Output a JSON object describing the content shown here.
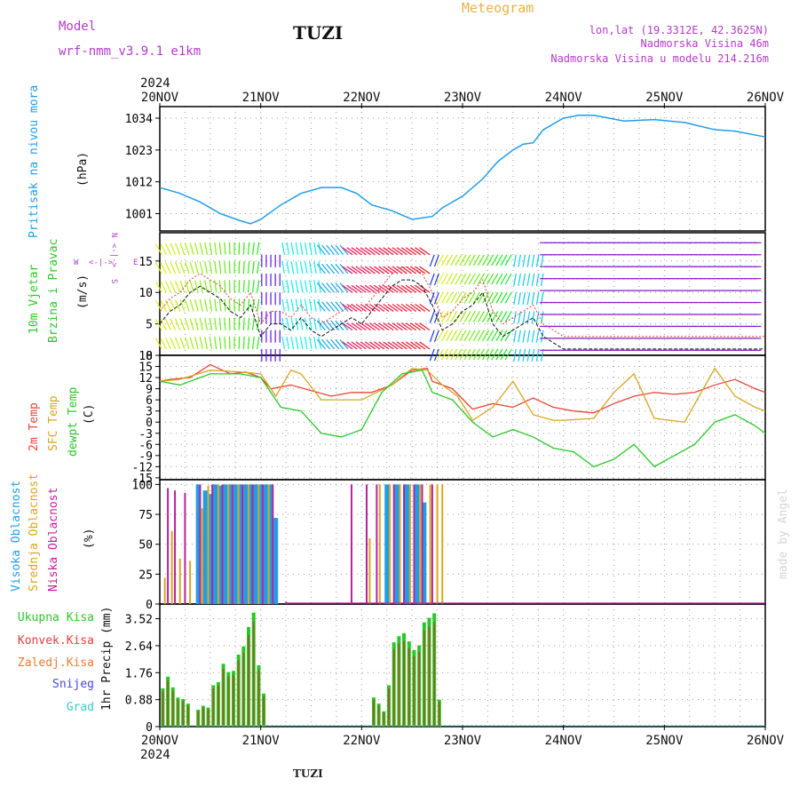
{
  "header": {
    "model_label": "Model",
    "model_name": "wrf-nmm_v3.9.1 e1km",
    "station": "TUZI",
    "meteogram": "Meteogram",
    "lonlat": "lon,lat (19.3312E, 42.3625N)",
    "elevation": "Nadmorska Visina 46m",
    "model_elevation": "Nadmorska Visina u modelu 214.216m",
    "year_top": "2024",
    "year_bottom": "2024",
    "footer_station": "TUZI",
    "watermark": "made by Angel"
  },
  "colors": {
    "pressure": "#1e9ee6",
    "temp2m": "#e8443a",
    "sfc": "#d9a520",
    "dewpt": "#28c828",
    "high_cloud": "#1e9ee6",
    "mid_cloud": "#d9a520",
    "low_cloud": "#b4249c",
    "total": "#28c828",
    "conv": "#e83c3c",
    "frz": "#f07830",
    "snow": "#4646dc",
    "hail": "#3cc8c8",
    "label_purple": "#b23cc8"
  },
  "x_axis": {
    "labels": [
      "20NOV",
      "21NOV",
      "22NOV",
      "23NOV",
      "24NOV",
      "25NOV",
      "26NOV"
    ]
  },
  "panels": {
    "pressure": {
      "label1": "Pritisak na nivou mora",
      "unit": "(hPa)",
      "ticks": [
        "1034",
        "1023",
        "1012",
        "1001"
      ],
      "tick_values": [
        1034,
        1023,
        1012,
        1001
      ],
      "ylim": [
        995,
        1038
      ]
    },
    "wind": {
      "label1": "10m Vjetar",
      "label2": "Brzina i Pravac",
      "unit": "(m/s)",
      "ticks": [
        "15",
        "10",
        "5",
        "0"
      ],
      "tick_values": [
        15,
        10,
        5,
        0
      ],
      "ylim": [
        0,
        19.5
      ],
      "compass": {
        "w": "W",
        "e": "E",
        "n": "N",
        "s": "S",
        "arrow": "<-|->"
      }
    },
    "temp": {
      "label1": "2m Temp",
      "label2": "SFC Temp",
      "label3": "dewpt Temp",
      "unit": "(C)",
      "ticks": [
        "18",
        "15",
        "12",
        "9",
        "6",
        "3",
        "0",
        "-3",
        "-6",
        "-9",
        "-12",
        "-15"
      ],
      "tick_values": [
        18,
        15,
        12,
        9,
        6,
        3,
        0,
        -3,
        -6,
        -9,
        -12,
        -15
      ],
      "ylim": [
        -15.5,
        18
      ]
    },
    "cloud": {
      "label1": "Visoka Oblacnost",
      "label2": "Srednja Oblacnost",
      "label3": "Niska Oblacnost",
      "unit": "(%)",
      "ticks": [
        "100",
        "75",
        "50",
        "25",
        "0"
      ],
      "tick_values": [
        100,
        75,
        50,
        25,
        0
      ],
      "ylim": [
        0,
        104
      ]
    },
    "precip": {
      "legend": [
        "Ukupna Kisa",
        "Konvek.Kisa",
        "Zaledj.Kisa",
        "Snijeg",
        "Grad"
      ],
      "unit": "1hr Precip (mm)",
      "ticks": [
        "3.52",
        "2.64",
        "1.76",
        "0.88",
        "0"
      ],
      "tick_values": [
        3.52,
        2.64,
        1.76,
        0.88,
        0
      ],
      "ylim": [
        0,
        4.0
      ]
    }
  },
  "chart_data": [
    {
      "type": "line",
      "id": "pressure",
      "ylabel": "Pritisak na nivou mora (hPa)",
      "x_days": [
        0,
        0.2,
        0.4,
        0.6,
        0.8,
        0.9,
        1.0,
        1.2,
        1.4,
        1.6,
        1.8,
        1.95,
        2.1,
        2.3,
        2.5,
        2.7,
        2.8,
        3.0,
        3.2,
        3.35,
        3.5,
        3.6,
        3.7,
        3.8,
        4.0,
        4.15,
        4.3,
        4.6,
        4.9,
        5.2,
        5.5,
        5.7,
        6.0
      ],
      "y_hpa": [
        1010,
        1008,
        1005,
        1001,
        998.5,
        997.5,
        999,
        1004,
        1008,
        1010,
        1010,
        1008,
        1004,
        1002,
        999,
        1000,
        1003,
        1007,
        1013,
        1019,
        1023,
        1025,
        1025.5,
        1030,
        1034,
        1035,
        1035,
        1033,
        1033.5,
        1032.5,
        1030,
        1029.5,
        1027.5
      ]
    },
    {
      "type": "line",
      "id": "temperature",
      "series": [
        {
          "name": "2m Temp",
          "x_days": [
            0,
            0.1,
            0.3,
            0.5,
            0.7,
            0.85,
            1.0,
            1.1,
            1.3,
            1.5,
            1.7,
            1.9,
            2.1,
            2.3,
            2.5,
            2.65,
            2.7,
            2.9,
            3.1,
            3.3,
            3.5,
            3.7,
            3.9,
            4.1,
            4.3,
            4.5,
            4.7,
            4.9,
            5.1,
            5.3,
            5.5,
            5.7,
            5.9,
            6.0
          ],
          "y": [
            11,
            11.5,
            12,
            15.5,
            13,
            13.5,
            12,
            9,
            10,
            8.5,
            7,
            8,
            8,
            10,
            14,
            14.5,
            11,
            9,
            3.5,
            5,
            4,
            6.5,
            4,
            3,
            2.5,
            5,
            7,
            8,
            7.5,
            8,
            10,
            11.5,
            9,
            8
          ]
        },
        {
          "name": "SFC Temp",
          "x_days": [
            0,
            0.2,
            0.5,
            0.8,
            1.0,
            1.15,
            1.3,
            1.4,
            1.6,
            1.8,
            2.0,
            2.3,
            2.5,
            2.65,
            2.8,
            2.95,
            3.1,
            3.3,
            3.5,
            3.7,
            3.9,
            4.0,
            4.3,
            4.5,
            4.7,
            4.9,
            5.2,
            5.5,
            5.7,
            5.9,
            6.0
          ],
          "y": [
            11,
            11.5,
            14,
            13.5,
            13,
            7,
            14,
            13,
            6,
            6,
            6,
            10,
            14.5,
            14,
            10,
            7,
            0.5,
            4,
            11,
            2,
            0.5,
            0.5,
            1,
            8,
            13,
            1,
            0,
            14.5,
            7,
            4,
            3
          ]
        },
        {
          "name": "dewpt Temp",
          "x_days": [
            0,
            0.2,
            0.5,
            0.8,
            1.0,
            1.1,
            1.2,
            1.4,
            1.5,
            1.6,
            1.8,
            2.0,
            2.2,
            2.4,
            2.6,
            2.7,
            2.9,
            3.1,
            3.3,
            3.5,
            3.7,
            3.9,
            4.1,
            4.3,
            4.5,
            4.7,
            4.9,
            5.1,
            5.3,
            5.5,
            5.7,
            5.9,
            6.0
          ],
          "y": [
            11,
            10,
            13,
            13,
            12,
            8,
            4,
            3,
            0,
            -3,
            -4,
            -2,
            8,
            13,
            14,
            8,
            6,
            0,
            -4,
            -2,
            -4,
            -7,
            -8,
            -12,
            -10,
            -6,
            -12,
            -9,
            -6,
            0,
            2,
            -1,
            -3
          ]
        }
      ]
    },
    {
      "type": "bar",
      "id": "cloud",
      "ylabel": "Oblacnost (%)",
      "series": [
        {
          "name": "Visoka Oblacnost",
          "x_days": [
            0.38,
            0.45,
            0.5,
            0.55,
            0.6,
            0.65,
            0.7,
            0.75,
            0.8,
            0.85,
            0.9,
            0.95,
            1.0,
            1.05,
            1.1,
            1.15,
            2.25,
            2.35,
            2.45,
            2.55,
            2.62
          ],
          "y": [
            100,
            95,
            92,
            100,
            99,
            100,
            100,
            100,
            100,
            100,
            100,
            100,
            100,
            100,
            100,
            72,
            100,
            100,
            100,
            100,
            85
          ]
        },
        {
          "name": "Srednja Oblacnost",
          "x_days": [
            0.05,
            0.12,
            0.2,
            0.3,
            0.42,
            0.48,
            0.58,
            0.68,
            0.78,
            0.88,
            0.98,
            1.08,
            2.08,
            2.18,
            2.28,
            2.38,
            2.48,
            2.58,
            2.68,
            2.75,
            2.8
          ],
          "y": [
            22,
            61,
            38,
            36,
            80,
            99,
            100,
            100,
            100,
            100,
            100,
            100,
            55,
            100,
            100,
            100,
            100,
            100,
            100,
            100,
            100
          ]
        },
        {
          "name": "Niska Oblacnost",
          "x_days": [
            0.08,
            0.15,
            0.25,
            0.4,
            0.52,
            0.62,
            0.72,
            0.82,
            0.92,
            1.02,
            1.12,
            1.25,
            1.9,
            2.05,
            2.15,
            2.32,
            2.42,
            2.52,
            2.6,
            2.7
          ],
          "y": [
            97,
            95,
            93,
            100,
            100,
            100,
            100,
            100,
            100,
            100,
            100,
            2,
            100,
            100,
            100,
            100,
            100,
            100,
            100,
            100
          ]
        }
      ]
    },
    {
      "type": "bar",
      "id": "precip",
      "ylabel": "1hr Precip (mm)",
      "series": [
        {
          "name": "Ukupna Kisa",
          "x_days": [
            0.03,
            0.08,
            0.13,
            0.18,
            0.23,
            0.28,
            0.38,
            0.43,
            0.48,
            0.53,
            0.58,
            0.63,
            0.68,
            0.73,
            0.78,
            0.83,
            0.88,
            0.93,
            0.98,
            1.03,
            2.12,
            2.17,
            2.22,
            2.27,
            2.32,
            2.37,
            2.42,
            2.47,
            2.52,
            2.57,
            2.62,
            2.67,
            2.72,
            2.77
          ],
          "y": [
            1.25,
            1.63,
            1.28,
            0.95,
            0.9,
            0.75,
            0.55,
            0.68,
            0.62,
            1.35,
            1.45,
            2.05,
            1.78,
            1.82,
            2.35,
            2.62,
            3.25,
            3.72,
            2.0,
            1.08,
            0.95,
            0.75,
            0.5,
            1.35,
            2.75,
            2.95,
            3.05,
            2.78,
            2.5,
            2.65,
            3.4,
            3.55,
            3.7,
            0.88
          ]
        }
      ]
    },
    {
      "type": "scatter",
      "id": "wind",
      "ylabel": "10m Vjetar (m/s)",
      "series": [
        {
          "name": "Brzina",
          "x_days": [
            0,
            0.1,
            0.2,
            0.3,
            0.4,
            0.5,
            0.6,
            0.7,
            0.8,
            0.9,
            1.0,
            1.1,
            1.2,
            1.3,
            1.4,
            1.5,
            1.6,
            1.7,
            1.8,
            1.9,
            2.0,
            2.1,
            2.2,
            2.3,
            2.4,
            2.5,
            2.6,
            2.7,
            2.8,
            2.9,
            3.0,
            3.1,
            3.2,
            3.3,
            3.4,
            3.5,
            3.6,
            3.7,
            3.8,
            4.0,
            4.5,
            5.0,
            5.5,
            6.0
          ],
          "y": [
            5,
            7,
            8,
            10,
            11,
            10,
            9,
            7,
            6,
            8,
            3,
            5,
            5,
            4,
            6,
            4,
            3,
            4,
            5,
            6,
            5,
            7,
            9,
            11,
            12,
            12,
            11,
            8,
            4,
            5,
            7,
            8,
            10,
            5,
            3,
            4,
            5,
            6,
            3,
            1,
            1,
            1,
            1,
            1
          ]
        }
      ]
    }
  ]
}
